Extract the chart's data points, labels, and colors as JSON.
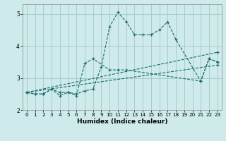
{
  "title": "",
  "xlabel": "Humidex (Indice chaleur)",
  "xlim": [
    -0.5,
    23.5
  ],
  "ylim": [
    2.0,
    5.3
  ],
  "yticks": [
    2,
    3,
    4,
    5
  ],
  "xticks": [
    0,
    1,
    2,
    3,
    4,
    5,
    6,
    7,
    8,
    9,
    10,
    11,
    12,
    13,
    14,
    15,
    16,
    17,
    18,
    19,
    20,
    21,
    22,
    23
  ],
  "bg_color": "#ceeaea",
  "grid_color": "#a8cccc",
  "line_color": "#1a6b6b",
  "figsize": [
    3.2,
    2.0
  ],
  "dpi": 100,
  "lines": [
    {
      "x": [
        0,
        1,
        2,
        3,
        4,
        5,
        6,
        7,
        8,
        9,
        10,
        11,
        12,
        13,
        14,
        15,
        16,
        17,
        18,
        21,
        22,
        23
      ],
      "y": [
        2.55,
        2.5,
        2.5,
        2.65,
        2.55,
        2.55,
        2.5,
        2.6,
        2.65,
        3.35,
        4.6,
        5.05,
        4.75,
        4.35,
        4.35,
        4.35,
        4.5,
        4.75,
        4.2,
        2.9,
        3.6,
        3.5
      ]
    },
    {
      "x": [
        0,
        1,
        2,
        3,
        4,
        5,
        6,
        7,
        8,
        10,
        11,
        12,
        21,
        22,
        23
      ],
      "y": [
        2.55,
        2.5,
        2.5,
        2.65,
        2.45,
        2.55,
        2.45,
        3.45,
        3.6,
        3.25,
        3.25,
        3.25,
        2.9,
        3.6,
        3.5
      ]
    },
    {
      "x": [
        0,
        23
      ],
      "y": [
        2.55,
        3.8
      ]
    },
    {
      "x": [
        0,
        23
      ],
      "y": [
        2.55,
        3.4
      ]
    }
  ]
}
